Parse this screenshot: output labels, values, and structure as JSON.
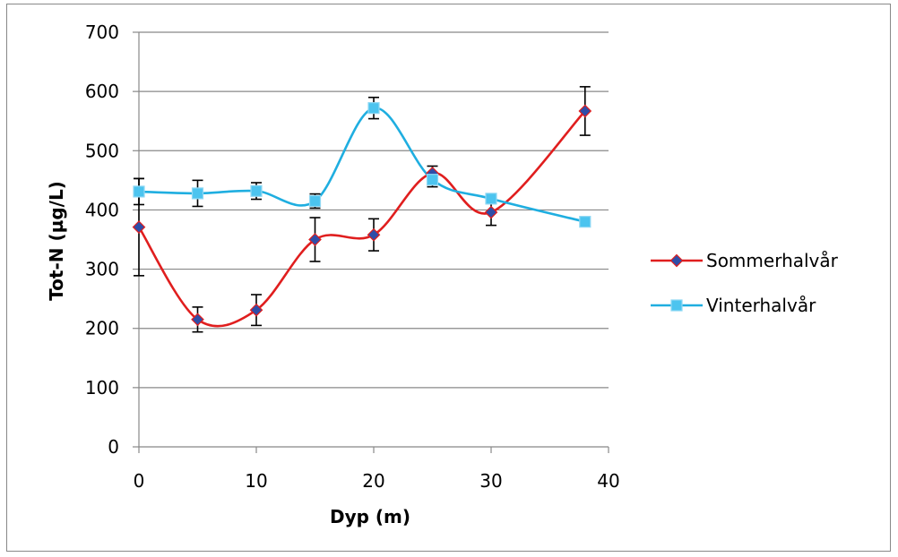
{
  "chart_data": {
    "type": "line",
    "xlabel": "Dyp (m)",
    "ylabel": "Tot-N (µg/L)",
    "xlim": [
      0,
      40
    ],
    "ylim": [
      0,
      700
    ],
    "xticks": [
      0,
      10,
      20,
      30,
      40
    ],
    "yticks": [
      0,
      100,
      200,
      300,
      400,
      500,
      600,
      700
    ],
    "grid": "horizontal",
    "legend_position": "right",
    "smoothed": true,
    "series": [
      {
        "name": "Sommerhalvår",
        "color": "#e01e1e",
        "marker_color": "#2e4ea8",
        "marker": "diamond",
        "x": [
          0,
          5,
          10,
          15,
          20,
          25,
          30,
          38
        ],
        "y": [
          371,
          215,
          231,
          350,
          358,
          462,
          396,
          567
        ],
        "error": [
          82,
          21,
          26,
          37,
          27,
          12,
          22,
          41
        ]
      },
      {
        "name": "Vinterhalvår",
        "color": "#1faee0",
        "marker_color": "#4cc4ef",
        "marker": "square",
        "x": [
          0,
          5,
          10,
          15,
          20,
          25,
          30,
          38
        ],
        "y": [
          431,
          428,
          432,
          415,
          572,
          451,
          419,
          380
        ],
        "error": [
          22,
          22,
          14,
          12,
          18,
          12,
          0,
          0
        ]
      }
    ]
  }
}
